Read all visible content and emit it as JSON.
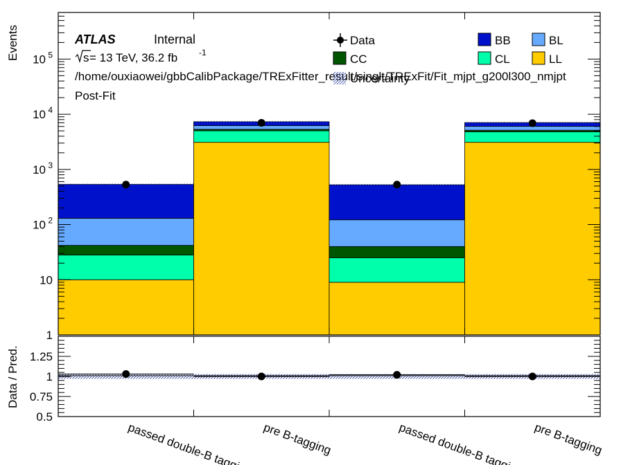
{
  "chart_data": [
    {
      "type": "bar",
      "stacked": true,
      "yscale": "log",
      "ylim": [
        1,
        700000
      ],
      "ylabel": "Events",
      "categories": [
        "passed double-B tagging",
        "pre B-tagging",
        "passed double-B tagging",
        "pre B-tagging"
      ],
      "yticks": [
        {
          "value": 1,
          "label": "1"
        },
        {
          "value": 10,
          "label": "10"
        },
        {
          "value": 100,
          "base": "10",
          "exp": "2"
        },
        {
          "value": 1000,
          "base": "10",
          "exp": "3"
        },
        {
          "value": 10000,
          "base": "10",
          "exp": "4"
        },
        {
          "value": 100000,
          "base": "10",
          "exp": "5"
        }
      ],
      "series": [
        {
          "name": "LL",
          "color": "#FFCC00",
          "values": [
            10,
            3100,
            9,
            3100
          ]
        },
        {
          "name": "CL",
          "color": "#00FFAA",
          "values": [
            18,
            1900,
            16,
            1700
          ]
        },
        {
          "name": "CC",
          "color": "#005500",
          "values": [
            14,
            330,
            15,
            330
          ]
        },
        {
          "name": "BL",
          "color": "#66AAFF",
          "values": [
            88,
            900,
            82,
            900
          ]
        },
        {
          "name": "BB",
          "color": "#0011CC",
          "values": [
            405,
            1070,
            403,
            1020
          ]
        }
      ],
      "data": {
        "name": "Data",
        "values": [
          530,
          7000,
          530,
          6900
        ]
      },
      "uncertainty_label": "Uncertainty",
      "legend": [
        "Data",
        "BB",
        "BL",
        "CC",
        "CL",
        "LL",
        "Uncertainty"
      ],
      "annotations": {
        "atlas": "ATLAS",
        "status": "Internal",
        "energy": "s",
        "energy_rest": " = 13 TeV, 36.2 fb",
        "lumi_exp": "-1",
        "path": "/home/ouxiaowei/gbbCalibPackage/TRExFitter_result/singlt/TRExFit/Fit_mjpt_g200l300_nmjpt",
        "fit": "Post-Fit"
      }
    },
    {
      "type": "scatter",
      "ylabel": "Data / Pred.",
      "ylim": [
        0.5,
        1.5
      ],
      "yticks": [
        {
          "value": 0.5,
          "label": "0.5"
        },
        {
          "value": 0.75,
          "label": "0.75"
        },
        {
          "value": 1,
          "label": "1"
        },
        {
          "value": 1.25,
          "label": "1.25"
        }
      ],
      "values": [
        1.03,
        1.0,
        1.02,
        1.0
      ]
    }
  ]
}
